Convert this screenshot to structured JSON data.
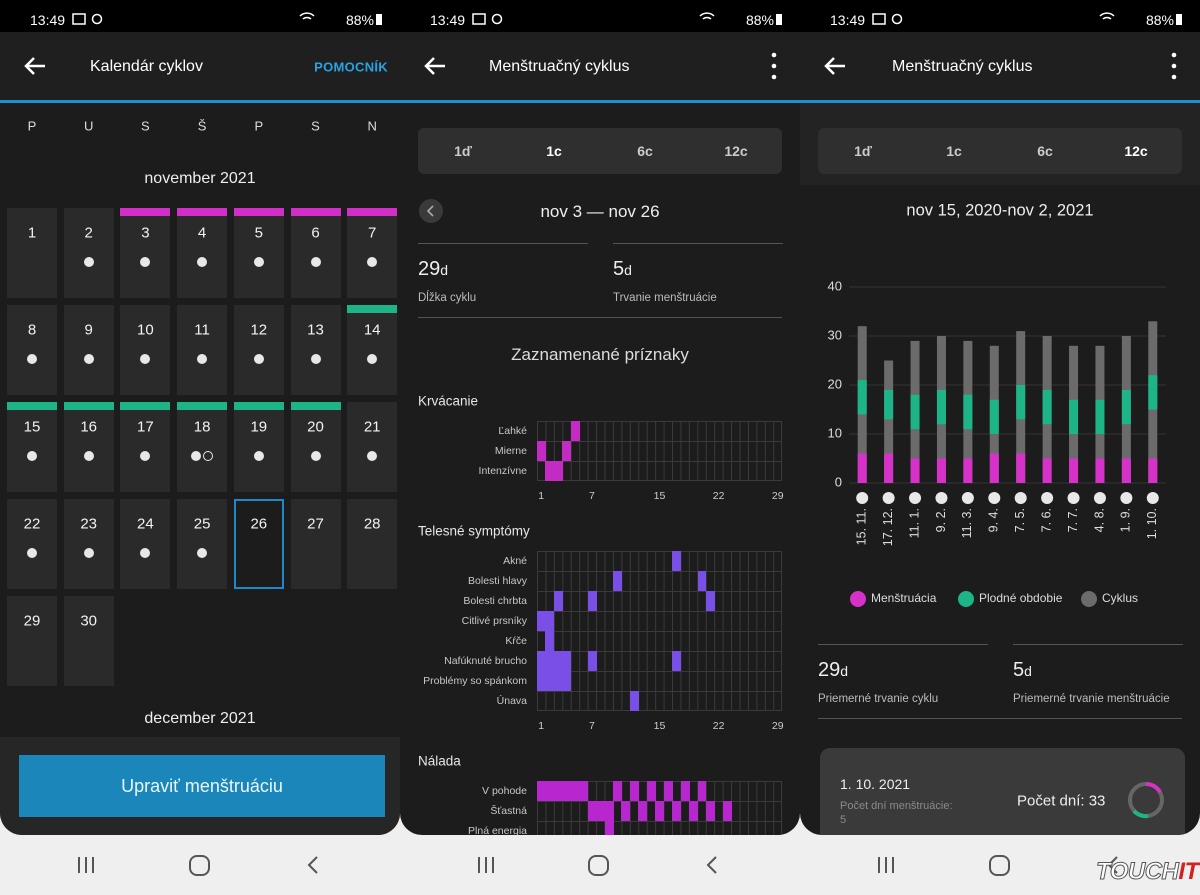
{
  "status_bar": {
    "time": "13:49",
    "battery": "88%"
  },
  "screens": [
    {
      "header": {
        "title": "Kalendár cyklov",
        "action": "POMOCNÍK"
      },
      "weekdays": [
        "P",
        "U",
        "S",
        "Š",
        "P",
        "S",
        "N"
      ],
      "month": "november 2021",
      "days": [
        1,
        2,
        3,
        4,
        5,
        6,
        7,
        8,
        9,
        10,
        11,
        12,
        13,
        14,
        15,
        16,
        17,
        18,
        19,
        20,
        21,
        22,
        23,
        24,
        25,
        26,
        27,
        28,
        29,
        30
      ],
      "menstruation_days": [
        3,
        4,
        5,
        6,
        7
      ],
      "fertile_days": [
        14,
        15,
        16,
        17,
        18,
        19,
        20
      ],
      "logged_days": [
        2,
        3,
        4,
        5,
        6,
        7,
        8,
        9,
        10,
        11,
        12,
        13,
        14,
        15,
        16,
        17,
        18,
        19,
        20,
        21,
        22,
        23,
        24,
        25
      ],
      "open_circle_days": [
        18
      ],
      "selected_day": 26,
      "next_month": "december 2021",
      "button": "Upraviť menštruáciu"
    },
    {
      "header": {
        "title": "Menštruačný cyklus"
      },
      "tabs": [
        "1ď",
        "1c",
        "6c",
        "12c"
      ],
      "active_tab": 1,
      "range": "nov 3 — nov 26",
      "stats": [
        {
          "value": 29,
          "unit": "d",
          "label": "Dĺžka cyklu"
        },
        {
          "value": 5,
          "unit": "d",
          "label": "Trvanie menštruácie"
        }
      ],
      "section_title": "Zaznamenané príznaky",
      "day_ticks": [
        1,
        7,
        15,
        22,
        29
      ],
      "groups": [
        {
          "title": "Krvácanie",
          "color": "#c42bc4",
          "rows": [
            {
              "label": "Ľahké",
              "days": [
                5
              ]
            },
            {
              "label": "Mierne",
              "days": [
                1,
                4
              ]
            },
            {
              "label": "Intenzívne",
              "days": [
                2,
                3
              ]
            }
          ]
        },
        {
          "title": "Telesné symptómy",
          "color": "#7a4fe8",
          "rows": [
            {
              "label": "Akné",
              "days": [
                17
              ]
            },
            {
              "label": "Bolesti hlavy",
              "days": [
                10,
                20
              ]
            },
            {
              "label": "Bolesti chrbta",
              "days": [
                3,
                7,
                21
              ]
            },
            {
              "label": "Citlivé prsníky",
              "days": [
                1,
                2
              ]
            },
            {
              "label": "Kŕče",
              "days": [
                2
              ]
            },
            {
              "label": "Nafúknuté brucho",
              "days": [
                1,
                2,
                3,
                4,
                7,
                17
              ]
            },
            {
              "label": "Problémy so spánkom",
              "days": [
                1,
                2,
                3,
                4
              ]
            },
            {
              "label": "Únava",
              "days": [
                12
              ]
            }
          ]
        },
        {
          "title": "Nálada",
          "color": "#b826cf",
          "rows": [
            {
              "label": "V pohode",
              "days": [
                1,
                2,
                3,
                4,
                5,
                6,
                10,
                12,
                14,
                16,
                18,
                20
              ]
            },
            {
              "label": "Šťastná",
              "days": [
                7,
                8,
                9,
                11,
                13,
                15,
                17,
                19,
                21,
                23
              ]
            },
            {
              "label": "Plná energia",
              "days": [
                9
              ]
            }
          ]
        }
      ]
    },
    {
      "header": {
        "title": "Menštruačný cyklus"
      },
      "tabs": [
        "1ď",
        "1c",
        "6c",
        "12c"
      ],
      "active_tab": 3,
      "range": "nov 15, 2020-nov 2, 2021",
      "chart_data": {
        "type": "bar",
        "categories": [
          "15. 11.",
          "17. 12.",
          "11. 1.",
          "9. 2.",
          "11. 3.",
          "9. 4.",
          "7. 5.",
          "7. 6.",
          "7. 7.",
          "4. 8.",
          "1. 9.",
          "1. 10."
        ],
        "series": [
          {
            "name": "Menštruácia",
            "color": "#d631c8",
            "values": [
              6,
              6,
              5,
              5,
              5,
              6,
              6,
              5,
              5,
              5,
              5,
              5
            ]
          },
          {
            "name": "Plodné obdobie",
            "color": "#1db488",
            "starts": [
              14,
              13,
              11,
              12,
              11,
              10,
              13,
              12,
              10,
              10,
              12,
              15
            ],
            "values": [
              21,
              19,
              18,
              19,
              18,
              17,
              20,
              19,
              17,
              17,
              19,
              22
            ]
          },
          {
            "name": "Cyklus",
            "color": "#6b6b6b",
            "values": [
              32,
              25,
              29,
              30,
              29,
              28,
              31,
              30,
              28,
              28,
              30,
              33
            ]
          }
        ],
        "ylim": [
          0,
          40
        ],
        "yticks": [
          0,
          10,
          20,
          30,
          40
        ],
        "grid": true
      },
      "stats": [
        {
          "value": 29,
          "unit": "d",
          "label": "Priemerné trvanie cyklu"
        },
        {
          "value": 5,
          "unit": "d",
          "label": "Priemerné trvanie menštruácie"
        }
      ],
      "card": {
        "date": "1. 10. 2021",
        "label": "Počet dní menštruácie:",
        "value": 5,
        "total": "Počet dní: 33"
      }
    }
  ],
  "watermark": {
    "text": "TOUCH",
    "accent": "IT"
  }
}
